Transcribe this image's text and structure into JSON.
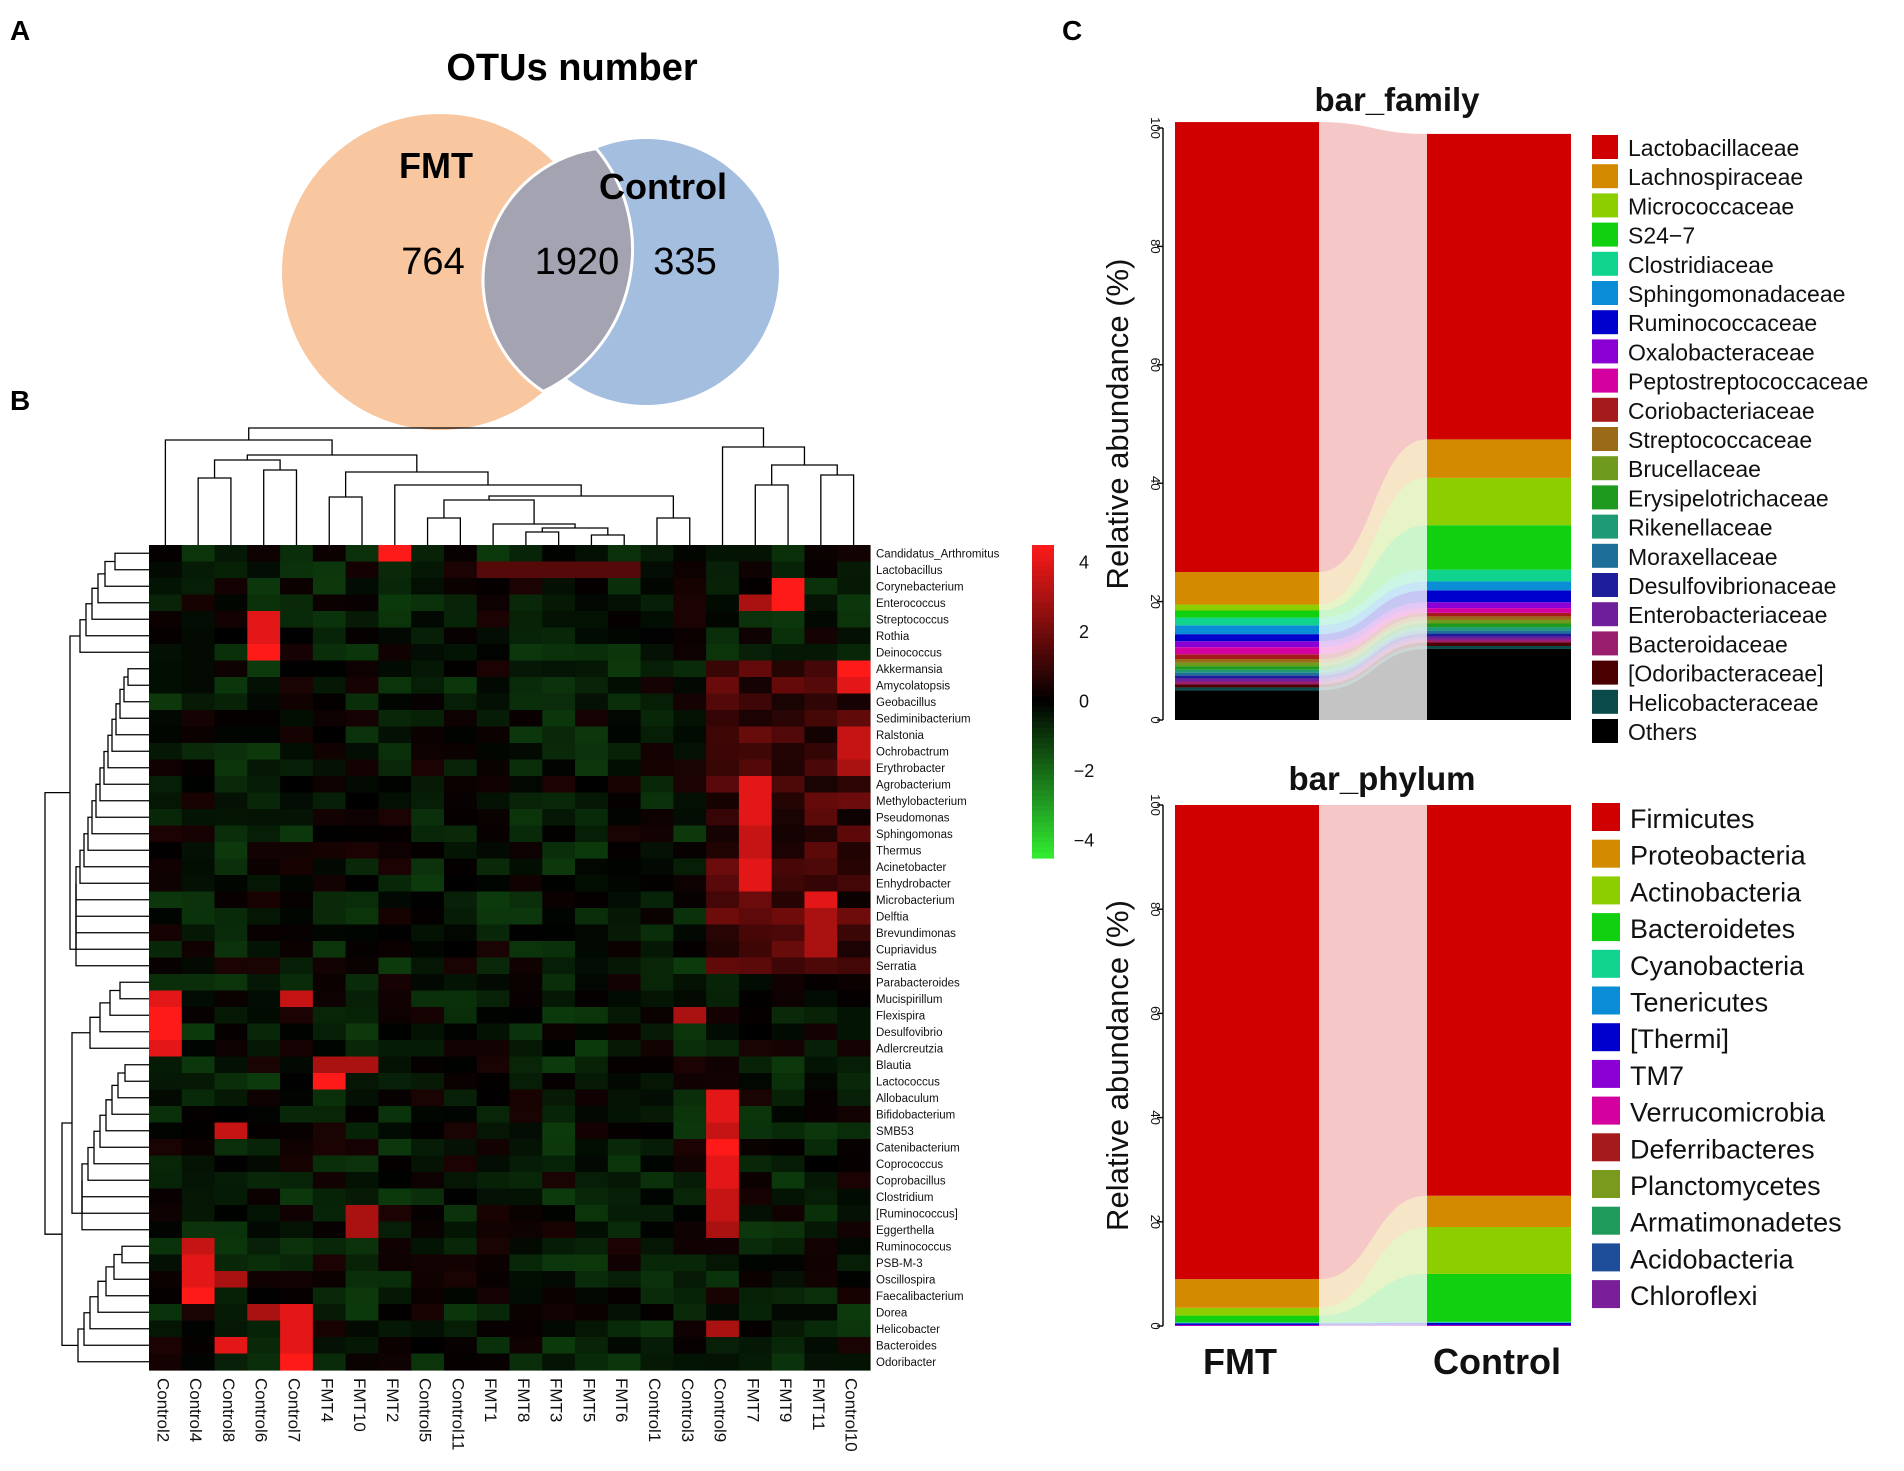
{
  "panel_letters": [
    "A",
    "B",
    "C"
  ],
  "colors": {
    "fmt_circle": "#f8c79f",
    "control_circle": "#a3bedf",
    "overlap": "#a4a3b2",
    "heat_low": "#33ee33",
    "heat_mid": "#000000",
    "heat_high": "#ff1a1a"
  },
  "chart_data": [
    {
      "type": "venn",
      "title": "OTUs number",
      "sets": [
        {
          "label": "FMT",
          "only": 764
        },
        {
          "label": "Control",
          "only": 335
        }
      ],
      "overlap": 1920
    },
    {
      "type": "heatmap",
      "columns": [
        "Control2",
        "Control4",
        "Control8",
        "Control6",
        "Control7",
        "FMT4",
        "FMT10",
        "FMT2",
        "Control5",
        "Control11",
        "FMT1",
        "FMT8",
        "FMT3",
        "FMT5",
        "FMT6",
        "Control1",
        "Control3",
        "Control9",
        "FMT7",
        "FMT9",
        "FMT11",
        "Control10"
      ],
      "rows": [
        "Candidatus_Arthromitus",
        "Lactobacillus",
        "Corynebacterium",
        "Enterococcus",
        "Streptococcus",
        "Rothia",
        "Deinococcus",
        "Akkermansia",
        "Amycolatopsis",
        "Geobacillus",
        "Sediminibacterium",
        "Ralstonia",
        "Ochrobactrum",
        "Erythrobacter",
        "Agrobacterium",
        "Methylobacterium",
        "Pseudomonas",
        "Sphingomonas",
        "Thermus",
        "Acinetobacter",
        "Enhydrobacter",
        "Microbacterium",
        "Delftia",
        "Brevundimonas",
        "Cupriavidus",
        "Serratia",
        "Parabacteroides",
        "Mucispirillum",
        "Flexispira",
        "Desulfovibrio",
        "Adlercreutzia",
        "Blautia",
        "Lactococcus",
        "Allobaculum",
        "Bifidobacterium",
        "SMB53",
        "Catenibacterium",
        "Coprococcus",
        "Coprobacillus",
        "Clostridium",
        "[Ruminococcus]",
        "Eggerthella",
        "Ruminococcus",
        "PSB-M-3",
        "Oscillospira",
        "Faecalibacterium",
        "Dorea",
        "Helicobacter",
        "Bacteroides",
        "Odoribacter"
      ],
      "scale": {
        "min": -4.5,
        "max": 4.5,
        "ticks": [
          "4",
          "2",
          "0",
          "−2",
          "−4"
        ],
        "tick_values": [
          4,
          2,
          0,
          -2,
          -4
        ]
      },
      "hotspots": [
        {
          "row": "Candidatus_Arthromitus",
          "col": "FMT2",
          "v": 4.5
        },
        {
          "row": "Lactobacillus",
          "col": "FMT1",
          "v": 1.5
        },
        {
          "row": "Lactobacillus",
          "col": "FMT8",
          "v": 1.5
        },
        {
          "row": "Lactobacillus",
          "col": "FMT3",
          "v": 1.5
        },
        {
          "row": "Lactobacillus",
          "col": "FMT5",
          "v": 1.5
        },
        {
          "row": "Lactobacillus",
          "col": "FMT6",
          "v": 1.5
        },
        {
          "row": "Corynebacterium",
          "col": "FMT9",
          "v": 4.5
        },
        {
          "row": "Enterococcus",
          "col": "FMT9",
          "v": 4.5
        },
        {
          "row": "Enterococcus",
          "col": "FMT7",
          "v": 3
        },
        {
          "row": "Streptococcus",
          "col": "Control6",
          "v": 4
        },
        {
          "row": "Rothia",
          "col": "Control6",
          "v": 4
        },
        {
          "row": "Deinococcus",
          "col": "Control6",
          "v": 4.5
        },
        {
          "row": "Akkermansia",
          "col": "Control10",
          "v": 4.5
        },
        {
          "row": "Amycolatopsis",
          "col": "Control10",
          "v": 4
        },
        {
          "row": "Ralstonia",
          "col": "Control10",
          "v": 3.5
        },
        {
          "row": "Ochrobactrum",
          "col": "Control10",
          "v": 3.5
        },
        {
          "row": "Erythrobacter",
          "col": "Control10",
          "v": 3
        },
        {
          "row": "Agrobacterium",
          "col": "FMT7",
          "v": 4
        },
        {
          "row": "Methylobacterium",
          "col": "FMT7",
          "v": 4
        },
        {
          "row": "Pseudomonas",
          "col": "FMT7",
          "v": 4
        },
        {
          "row": "Sphingomonas",
          "col": "FMT7",
          "v": 3.5
        },
        {
          "row": "Thermus",
          "col": "FMT7",
          "v": 3.5
        },
        {
          "row": "Acinetobacter",
          "col": "FMT7",
          "v": 4
        },
        {
          "row": "Enhydrobacter",
          "col": "FMT7",
          "v": 4
        },
        {
          "row": "Microbacterium",
          "col": "FMT11",
          "v": 4
        },
        {
          "row": "Delftia",
          "col": "FMT11",
          "v": 3
        },
        {
          "row": "Brevundimonas",
          "col": "FMT11",
          "v": 3
        },
        {
          "row": "Cupriavidus",
          "col": "FMT11",
          "v": 3
        },
        {
          "row": "Mucispirillum",
          "col": "Control2",
          "v": 4
        },
        {
          "row": "Flexispira",
          "col": "Control2",
          "v": 4.5
        },
        {
          "row": "Desulfovibrio",
          "col": "Control2",
          "v": 4.5
        },
        {
          "row": "Adlercreutzia",
          "col": "Control2",
          "v": 4
        },
        {
          "row": "Mucispirillum",
          "col": "Control7",
          "v": 3.5
        },
        {
          "row": "Flexispira",
          "col": "Control3",
          "v": 3
        },
        {
          "row": "Lactococcus",
          "col": "FMT4",
          "v": 4.5
        },
        {
          "row": "Blautia",
          "col": "FMT4",
          "v": 3
        },
        {
          "row": "Blautia",
          "col": "FMT10",
          "v": 3
        },
        {
          "row": "Allobaculum",
          "col": "Control9",
          "v": 4
        },
        {
          "row": "Bifidobacterium",
          "col": "Control9",
          "v": 4
        },
        {
          "row": "SMB53",
          "col": "Control9",
          "v": 3.5
        },
        {
          "row": "Catenibacterium",
          "col": "Control9",
          "v": 4.5
        },
        {
          "row": "Coprococcus",
          "col": "Control9",
          "v": 4
        },
        {
          "row": "Coprobacillus",
          "col": "Control9",
          "v": 4
        },
        {
          "row": "Clostridium",
          "col": "Control9",
          "v": 3.5
        },
        {
          "row": "[Ruminococcus]",
          "col": "Control9",
          "v": 3.5
        },
        {
          "row": "Eggerthella",
          "col": "Control9",
          "v": 3
        },
        {
          "row": "SMB53",
          "col": "Control8",
          "v": 3.5
        },
        {
          "row": "[Ruminococcus]",
          "col": "FMT10",
          "v": 3
        },
        {
          "row": "Eggerthella",
          "col": "FMT10",
          "v": 3
        },
        {
          "row": "Ruminococcus",
          "col": "Control4",
          "v": 3.5
        },
        {
          "row": "PSB-M-3",
          "col": "Control4",
          "v": 4
        },
        {
          "row": "Oscillospira",
          "col": "Control4",
          "v": 4
        },
        {
          "row": "Faecalibacterium",
          "col": "Control4",
          "v": 4.5
        },
        {
          "row": "Oscillospira",
          "col": "Control8",
          "v": 3
        },
        {
          "row": "Dorea",
          "col": "Control7",
          "v": 4
        },
        {
          "row": "Helicobacter",
          "col": "Control7",
          "v": 4
        },
        {
          "row": "Bacteroides",
          "col": "Control7",
          "v": 4
        },
        {
          "row": "Odoribacter",
          "col": "Control7",
          "v": 4.5
        },
        {
          "row": "Bacteroides",
          "col": "Control8",
          "v": 4
        },
        {
          "row": "Dorea",
          "col": "Control6",
          "v": 3
        },
        {
          "row": "Helicobacter",
          "col": "Control9",
          "v": 3
        }
      ]
    },
    {
      "type": "stacked_bar",
      "title": "bar_family",
      "ylabel": "Relative abundance (%)",
      "ylim": [
        0,
        100
      ],
      "yticks": [
        0,
        20,
        40,
        60,
        80,
        100
      ],
      "categories": [
        "FMT",
        "Control"
      ],
      "series": [
        {
          "name": "Lactobacillaceae",
          "color": "#d00000",
          "values": [
            76,
            51.6
          ]
        },
        {
          "name": "Lachnospiraceae",
          "color": "#d48a00",
          "values": [
            5.5,
            6.5
          ]
        },
        {
          "name": "Micrococcaceae",
          "color": "#8cce00",
          "values": [
            1,
            8
          ]
        },
        {
          "name": "S24−7",
          "color": "#10d010",
          "values": [
            1.2,
            7.5
          ]
        },
        {
          "name": "Clostridiaceae",
          "color": "#10d48e",
          "values": [
            1.3,
            2
          ]
        },
        {
          "name": "Sphingomonadaceae",
          "color": "#0a8cd6",
          "values": [
            1.5,
            1.5
          ]
        },
        {
          "name": "Ruminococcaceae",
          "color": "#0000cc",
          "values": [
            1.2,
            2
          ]
        },
        {
          "name": "Oxalobacteraceae",
          "color": "#8a00d4",
          "values": [
            1,
            1
          ]
        },
        {
          "name": "Peptostreptococcaceae",
          "color": "#d400a0",
          "values": [
            1.2,
            0.8
          ]
        },
        {
          "name": "Coriobacteriaceae",
          "color": "#a51a1a",
          "values": [
            0.8,
            0.6
          ]
        },
        {
          "name": "Streptococcaceae",
          "color": "#9a6a18",
          "values": [
            0.6,
            0.6
          ]
        },
        {
          "name": "Brucellaceae",
          "color": "#6e9a1e",
          "values": [
            0.6,
            0.6
          ]
        },
        {
          "name": "Erysipelotrichaceae",
          "color": "#1e9a1e",
          "values": [
            0.6,
            0.6
          ]
        },
        {
          "name": "Rikenellaceae",
          "color": "#1e9a74",
          "values": [
            0.5,
            0.6
          ]
        },
        {
          "name": "Moraxellaceae",
          "color": "#1e6e9a",
          "values": [
            0.5,
            0.5
          ]
        },
        {
          "name": "Desulfovibrionaceae",
          "color": "#1e1e9a",
          "values": [
            0.5,
            0.5
          ]
        },
        {
          "name": "Enterobacteriaceae",
          "color": "#6e1e9a",
          "values": [
            0.5,
            0.5
          ]
        },
        {
          "name": "Bacteroidaceae",
          "color": "#9a1e6e",
          "values": [
            0.5,
            0.5
          ]
        },
        {
          "name": "[Odoribacteraceae]",
          "color": "#4a0000",
          "values": [
            0.5,
            0.6
          ]
        },
        {
          "name": "Helicobacteraceae",
          "color": "#0a4a4a",
          "values": [
            0.5,
            0.5
          ]
        },
        {
          "name": "Others",
          "color": "#000000",
          "values": [
            5,
            12
          ]
        }
      ]
    },
    {
      "type": "stacked_bar",
      "title": "bar_phylum",
      "ylabel": "Relative abundance (%)",
      "ylim": [
        0,
        100
      ],
      "yticks": [
        0,
        20,
        40,
        60,
        80,
        100
      ],
      "categories": [
        "FMT",
        "Control"
      ],
      "series": [
        {
          "name": "Firmicutes",
          "color": "#d00000",
          "values": [
            91,
            75
          ]
        },
        {
          "name": "Proteobacteria",
          "color": "#d48a00",
          "values": [
            5.5,
            6
          ]
        },
        {
          "name": "Actinobacteria",
          "color": "#8cce00",
          "values": [
            1.5,
            9
          ]
        },
        {
          "name": "Bacteroidetes",
          "color": "#10d010",
          "values": [
            1.3,
            9.2
          ]
        },
        {
          "name": "Cyanobacteria",
          "color": "#10d48e",
          "values": [
            0.1,
            0.1
          ]
        },
        {
          "name": "Tenericutes",
          "color": "#0a8cd6",
          "values": [
            0.1,
            0.1
          ]
        },
        {
          "name": "[Thermi]",
          "color": "#0000cc",
          "values": [
            0.3,
            0.4
          ]
        },
        {
          "name": "TM7",
          "color": "#8a00d4",
          "values": [
            0.1,
            0.1
          ]
        },
        {
          "name": "Verrucomicrobia",
          "color": "#d400a0",
          "values": [
            0.1,
            0.1
          ]
        },
        {
          "name": "Deferribacteres",
          "color": "#a51a1a",
          "values": [
            0,
            0
          ]
        },
        {
          "name": "Planctomycetes",
          "color": "#7a9a1e",
          "values": [
            0,
            0
          ]
        },
        {
          "name": "Armatimonadetes",
          "color": "#1e9a5a",
          "values": [
            0,
            0
          ]
        },
        {
          "name": "Acidobacteria",
          "color": "#1e4e9a",
          "values": [
            0,
            0
          ]
        },
        {
          "name": "Chloroflexi",
          "color": "#7a1e9a",
          "values": [
            0,
            0
          ]
        }
      ]
    }
  ]
}
